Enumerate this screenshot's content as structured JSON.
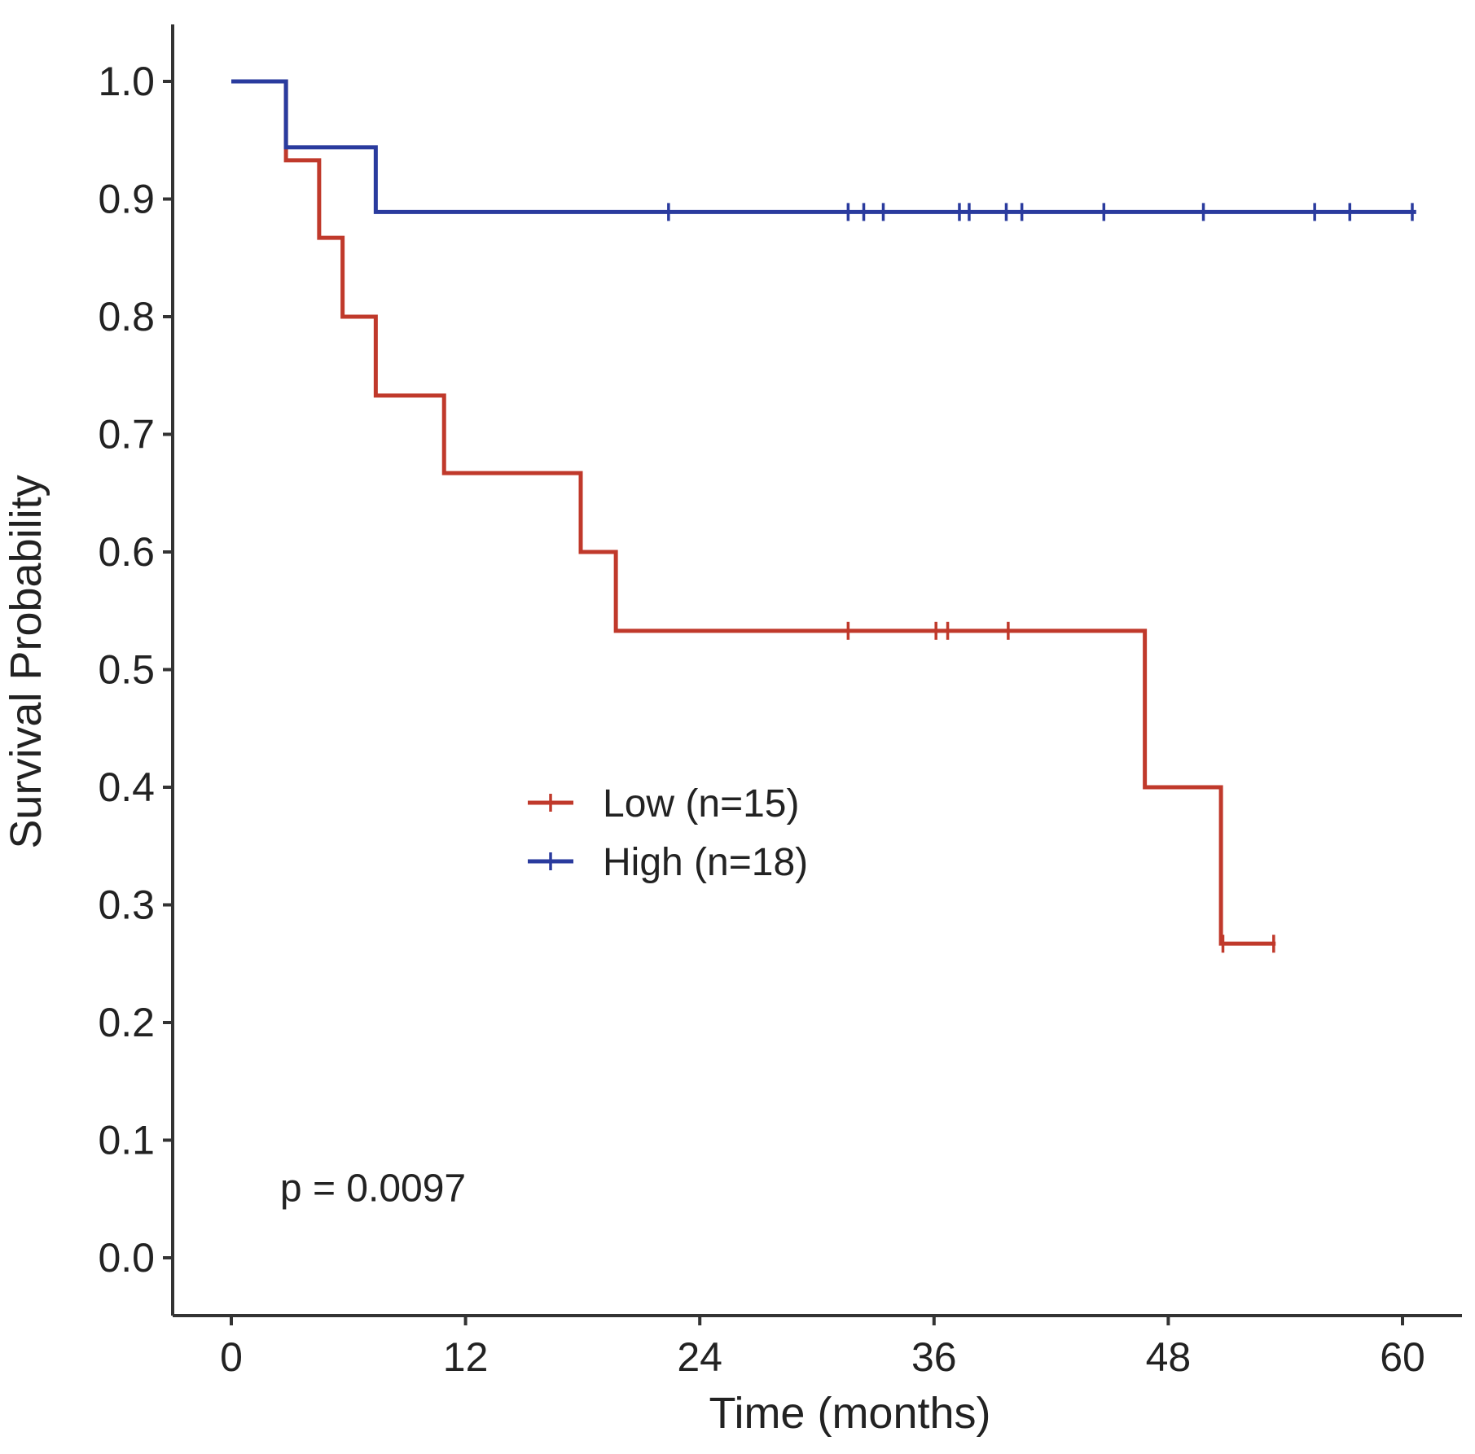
{
  "chart_data": {
    "type": "line",
    "subtype": "kaplan-meier",
    "title": "",
    "xlabel": "Time (months)",
    "ylabel": "Survival Probability",
    "xlim": [
      -2.5,
      62.5
    ],
    "ylim": [
      -0.05,
      1.05
    ],
    "x_ticks": [
      0,
      12,
      24,
      36,
      48,
      60
    ],
    "y_ticks": [
      0.0,
      0.1,
      0.2,
      0.3,
      0.4,
      0.5,
      0.6,
      0.7,
      0.8,
      0.9,
      1.0
    ],
    "y_tick_labels": [
      "0.0",
      "0.1",
      "0.2",
      "0.3",
      "0.4",
      "0.5",
      "0.6",
      "0.7",
      "0.8",
      "0.9",
      "1.0"
    ],
    "grid": false,
    "legend_position": "center",
    "annotation": "p = 0.0097",
    "series": [
      {
        "name": "Low (n=15)",
        "color": "#c0392b",
        "steps": [
          {
            "t": 0,
            "s": 1.0
          },
          {
            "t": 2.8,
            "s": 0.933
          },
          {
            "t": 4.5,
            "s": 0.867
          },
          {
            "t": 5.7,
            "s": 0.8
          },
          {
            "t": 7.4,
            "s": 0.733
          },
          {
            "t": 10.9,
            "s": 0.667
          },
          {
            "t": 17.9,
            "s": 0.6
          },
          {
            "t": 19.7,
            "s": 0.533
          },
          {
            "t": 46.8,
            "s": 0.4
          },
          {
            "t": 50.7,
            "s": 0.267
          }
        ],
        "end_time": 53.5,
        "censor_times": [
          31.6,
          36.1,
          36.7,
          39.8,
          50.8,
          53.4
        ]
      },
      {
        "name": "High (n=18)",
        "color": "#2a3b9e",
        "steps": [
          {
            "t": 0,
            "s": 1.0
          },
          {
            "t": 2.8,
            "s": 0.944
          },
          {
            "t": 7.4,
            "s": 0.889
          }
        ],
        "end_time": 60.7,
        "censor_times": [
          22.4,
          31.6,
          32.4,
          33.4,
          37.3,
          37.8,
          39.7,
          40.5,
          44.7,
          49.8,
          55.5,
          57.3,
          60.5
        ]
      }
    ]
  }
}
